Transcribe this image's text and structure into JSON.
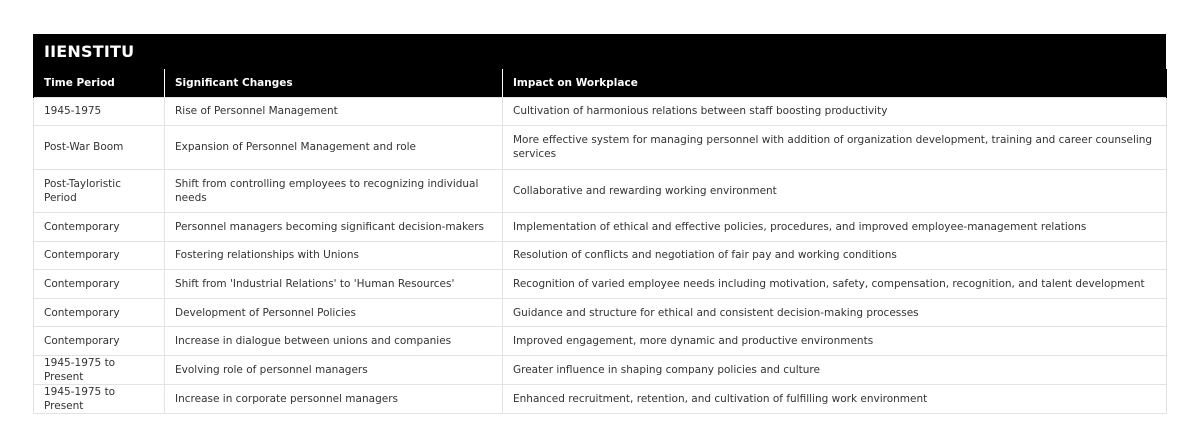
{
  "brand": "IIENSTITU",
  "table": {
    "headers": [
      "Time Period",
      "Significant Changes",
      "Impact on Workplace"
    ],
    "rows": [
      {
        "period": "1945-1975",
        "change": "Rise of Personnel Management",
        "impact": "Cultivation of harmonious relations between staff boosting productivity"
      },
      {
        "period": "Post-War Boom",
        "change": "Expansion of Personnel Management and role",
        "impact": "More effective system for managing personnel with addition of organization development, training and career counseling services"
      },
      {
        "period": "Post-Tayloristic Period",
        "change": "Shift from controlling employees to recognizing individual needs",
        "impact": "Collaborative and rewarding working environment"
      },
      {
        "period": "Contemporary",
        "change": "Personnel managers becoming significant decision-makers",
        "impact": "Implementation of ethical and effective policies, procedures, and improved employee-management relations"
      },
      {
        "period": "Contemporary",
        "change": "Fostering relationships with Unions",
        "impact": "Resolution of conflicts and negotiation of fair pay and working conditions"
      },
      {
        "period": "Contemporary",
        "change": "Shift from 'Industrial Relations' to 'Human Resources'",
        "impact": "Recognition of varied employee needs including motivation, safety, compensation, recognition, and talent development"
      },
      {
        "period": "Contemporary",
        "change": "Development of Personnel Policies",
        "impact": "Guidance and structure for ethical and consistent decision-making processes"
      },
      {
        "period": "Contemporary",
        "change": "Increase in dialogue between unions and companies",
        "impact": "Improved engagement, more dynamic and productive environments"
      },
      {
        "period": "1945-1975 to Present",
        "change": "Evolving role of personnel managers",
        "impact": "Greater influence in shaping company policies and culture"
      },
      {
        "period": "1945-1975 to Present",
        "change": "Increase in corporate personnel managers",
        "impact": "Enhanced recruitment, retention, and cultivation of fulfilling work environment"
      }
    ]
  }
}
